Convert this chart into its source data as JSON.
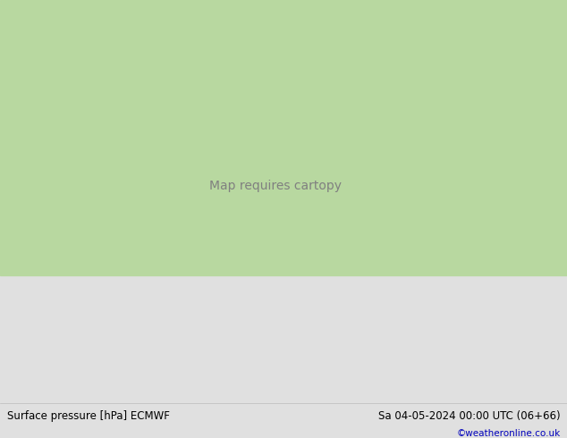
{
  "title_left": "Surface pressure [hPa] ECMWF",
  "title_right": "Sa 04-05-2024 00:00 UTC (06+66)",
  "credit": "©weatheronline.co.uk",
  "bg_ocean": "#c8d4e0",
  "bg_land": "#b8d8a0",
  "bg_footer": "#e0e0e0",
  "text_color": "#000000",
  "credit_color": "#0000bb",
  "c_black": "#000000",
  "c_blue": "#0044cc",
  "c_red": "#cc0000",
  "c_gray": "#888888",
  "figsize": [
    6.34,
    4.9
  ],
  "dpi": 100,
  "lon_min": 68,
  "lon_max": 175,
  "lat_min": -12,
  "lat_max": 58
}
